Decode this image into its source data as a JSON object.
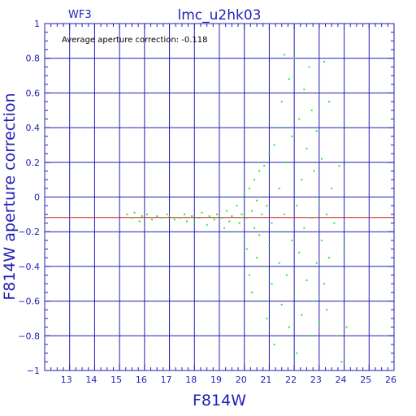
{
  "chart_data": {
    "type": "scatter",
    "title": "lmc_u2hk03",
    "subtitle": "WF3",
    "xlabel": "F814W",
    "ylabel": "F814W aperture correction",
    "annotation": "Average aperture correction:  -0.118",
    "xlim": [
      12,
      26
    ],
    "ylim": [
      -1,
      1
    ],
    "x_ticks": [
      "13",
      "14",
      "15",
      "16",
      "17",
      "18",
      "19",
      "20",
      "21",
      "22",
      "23",
      "24",
      "25",
      "26"
    ],
    "y_ticks": [
      "1",
      "0.8",
      "0.6",
      "0.4",
      "0.2",
      "0",
      "−0.2",
      "−0.4",
      "−0.6",
      "−0.8",
      "−1"
    ],
    "grid": true,
    "reference_line": -0.118,
    "colors": {
      "axis": "#1f1fb4",
      "points": "#22ee22",
      "reference_line": "#cc2222"
    },
    "points": [
      [
        15.3,
        -0.1
      ],
      [
        15.5,
        -0.12
      ],
      [
        15.6,
        -0.09
      ],
      [
        15.8,
        -0.14
      ],
      [
        15.9,
        -0.11
      ],
      [
        16.1,
        -0.1
      ],
      [
        16.3,
        -0.13
      ],
      [
        16.5,
        -0.11
      ],
      [
        16.7,
        -0.12
      ],
      [
        16.9,
        -0.1
      ],
      [
        17.0,
        -0.11
      ],
      [
        17.2,
        -0.13
      ],
      [
        17.4,
        -0.12
      ],
      [
        17.6,
        -0.1
      ],
      [
        17.7,
        -0.14
      ],
      [
        17.9,
        -0.11
      ],
      [
        18.0,
        -0.15
      ],
      [
        18.2,
        -0.12
      ],
      [
        18.3,
        -0.09
      ],
      [
        18.5,
        -0.16
      ],
      [
        18.6,
        -0.11
      ],
      [
        18.8,
        -0.13
      ],
      [
        18.9,
        -0.1
      ],
      [
        19.1,
        -0.12
      ],
      [
        19.2,
        -0.18
      ],
      [
        19.3,
        -0.08
      ],
      [
        19.4,
        -0.14
      ],
      [
        19.5,
        -0.11
      ],
      [
        19.6,
        -0.2
      ],
      [
        19.7,
        -0.05
      ],
      [
        19.8,
        -0.15
      ],
      [
        19.9,
        -0.1
      ],
      [
        20.0,
        -0.25
      ],
      [
        20.0,
        0.02
      ],
      [
        20.1,
        -0.3
      ],
      [
        20.1,
        -0.12
      ],
      [
        20.2,
        -0.45
      ],
      [
        20.2,
        0.05
      ],
      [
        20.3,
        -0.08
      ],
      [
        20.3,
        -0.55
      ],
      [
        20.4,
        -0.18
      ],
      [
        20.4,
        0.1
      ],
      [
        20.5,
        -0.35
      ],
      [
        20.5,
        -0.02
      ],
      [
        20.6,
        -0.22
      ],
      [
        20.6,
        0.15
      ],
      [
        20.7,
        -0.6
      ],
      [
        20.7,
        -0.1
      ],
      [
        20.8,
        -0.4
      ],
      [
        20.8,
        0.18
      ],
      [
        20.9,
        -0.05
      ],
      [
        20.9,
        -0.7
      ],
      [
        21.0,
        -0.28
      ],
      [
        21.0,
        0.25
      ],
      [
        21.1,
        -0.15
      ],
      [
        21.1,
        -0.5
      ],
      [
        21.2,
        0.3
      ],
      [
        21.2,
        -0.85
      ],
      [
        21.3,
        -0.2
      ],
      [
        21.3,
        0.4
      ],
      [
        21.4,
        -0.38
      ],
      [
        21.4,
        0.05
      ],
      [
        21.5,
        -0.62
      ],
      [
        21.5,
        0.55
      ],
      [
        21.6,
        -0.1
      ],
      [
        21.6,
        0.82
      ],
      [
        21.7,
        -0.45
      ],
      [
        21.7,
        0.2
      ],
      [
        21.8,
        -0.75
      ],
      [
        21.8,
        0.68
      ],
      [
        21.9,
        -0.25
      ],
      [
        21.9,
        0.35
      ],
      [
        22.0,
        -0.55
      ],
      [
        22.0,
        0.8
      ],
      [
        22.1,
        -0.05
      ],
      [
        22.1,
        -0.9
      ],
      [
        22.2,
        0.45
      ],
      [
        22.2,
        -0.32
      ],
      [
        22.3,
        0.1
      ],
      [
        22.3,
        -0.68
      ],
      [
        22.4,
        0.62
      ],
      [
        22.4,
        -0.18
      ],
      [
        22.5,
        -0.48
      ],
      [
        22.5,
        0.28
      ],
      [
        22.6,
        -0.8
      ],
      [
        22.6,
        0.75
      ],
      [
        22.7,
        -0.12
      ],
      [
        22.7,
        0.5
      ],
      [
        22.8,
        -0.6
      ],
      [
        22.8,
        0.15
      ],
      [
        22.9,
        -0.38
      ],
      [
        22.9,
        0.38
      ],
      [
        23.0,
        -0.72
      ],
      [
        23.0,
        -0.02
      ],
      [
        23.1,
        -0.25
      ],
      [
        23.1,
        0.22
      ],
      [
        23.2,
        -0.5
      ],
      [
        23.2,
        0.78
      ],
      [
        23.3,
        -0.1
      ],
      [
        23.3,
        -0.65
      ],
      [
        23.4,
        0.55
      ],
      [
        23.4,
        -0.35
      ],
      [
        23.5,
        0.05
      ],
      [
        23.6,
        -0.15
      ],
      [
        23.7,
        -0.8
      ],
      [
        23.8,
        0.18
      ],
      [
        23.9,
        -0.95
      ],
      [
        24.0,
        -0.3
      ],
      [
        24.1,
        -0.75
      ],
      [
        24.2,
        0.4
      ]
    ]
  }
}
